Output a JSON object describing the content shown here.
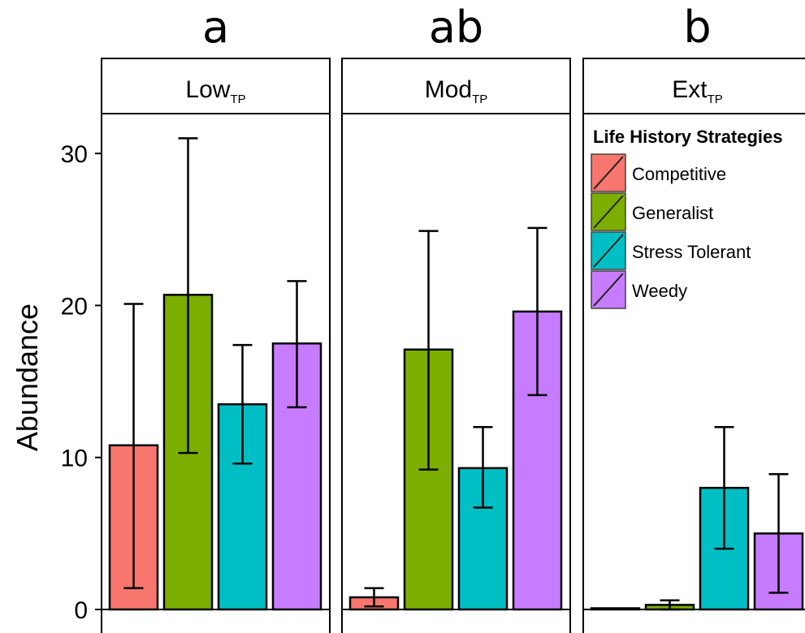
{
  "chart_data": {
    "type": "bar",
    "ylabel": "Abundance",
    "yticks": [
      0,
      10,
      20,
      30
    ],
    "ylim": [
      0,
      32.5
    ],
    "legend": {
      "title": "Life History Strategies",
      "placement": "top-right"
    },
    "colors": {
      "Competitive": "#f8766d",
      "Generalist": "#7cae00",
      "Stress Tolerant": "#00bfc4",
      "Weedy": "#c77cff"
    },
    "categories": [
      "Competitive",
      "Generalist",
      "Stress Tolerant",
      "Weedy"
    ],
    "panels": [
      {
        "name": "Low",
        "subscript": "TP",
        "letter": "a",
        "values": [
          10.8,
          20.7,
          13.5,
          17.5
        ],
        "err_low": [
          1.4,
          10.3,
          9.6,
          13.3
        ],
        "err_high": [
          20.1,
          31.0,
          17.4,
          21.6
        ]
      },
      {
        "name": "Mod",
        "subscript": "TP",
        "letter": "ab",
        "values": [
          0.8,
          17.1,
          9.3,
          19.6
        ],
        "err_low": [
          0.2,
          9.2,
          6.7,
          14.1
        ],
        "err_high": [
          1.4,
          24.9,
          12.0,
          25.1
        ]
      },
      {
        "name": "Ext",
        "subscript": "TP",
        "letter": "b",
        "values": [
          0.0,
          0.3,
          8.0,
          5.0
        ],
        "err_low": [
          0.0,
          0.0,
          4.0,
          1.1
        ],
        "err_high": [
          0.0,
          0.6,
          12.0,
          8.9
        ]
      }
    ],
    "grid": false
  }
}
